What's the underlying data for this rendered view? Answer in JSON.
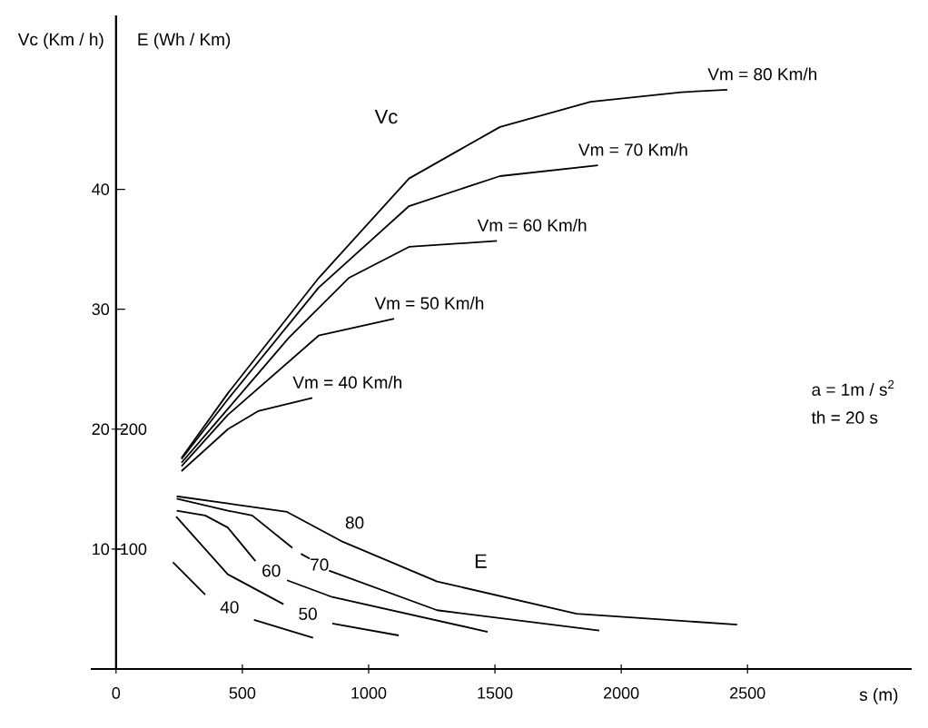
{
  "chart_data": {
    "type": "line",
    "xlabel": "s (m)",
    "ylabel": "Vc (Km / h)",
    "y2label": "E (Wh / Km)",
    "xlim": [
      -100,
      3150
    ],
    "xticks": [
      0,
      500,
      1000,
      1500,
      2000,
      2500
    ],
    "ylim": [
      0,
      54.5
    ],
    "yticks": [
      10,
      20,
      30,
      40
    ],
    "y2lim": [
      0,
      545
    ],
    "y2ticks": [
      100,
      200
    ],
    "series": [
      {
        "name": "Vm = 80 Km/h",
        "color": "#000000",
        "x": [
          259,
          443,
          802,
          1160,
          1520,
          1879,
          2238,
          2420
        ],
        "values": [
          17.6,
          23.0,
          32.6,
          40.9,
          45.2,
          47.3,
          48.1,
          48.3
        ]
      },
      {
        "name": "Vm = 70 Km/h",
        "color": "#000000",
        "x": [
          259,
          443,
          802,
          1160,
          1520,
          1908
        ],
        "values": [
          17.5,
          22.5,
          31.8,
          38.6,
          41.1,
          42.0
        ]
      },
      {
        "name": "Vm = 60 Km/h",
        "color": "#000000",
        "x": [
          259,
          443,
          683,
          921,
          1160,
          1508
        ],
        "values": [
          17.2,
          21.7,
          27.6,
          32.6,
          35.2,
          35.7
        ]
      },
      {
        "name": "Vm = 50 Km/h",
        "color": "#000000",
        "x": [
          259,
          443,
          802,
          1101
        ],
        "values": [
          16.9,
          21.2,
          27.8,
          29.2
        ]
      },
      {
        "name": "Vm = 40 Km/h",
        "color": "#000000",
        "x": [
          259,
          443,
          562,
          777
        ],
        "values": [
          16.5,
          20.0,
          21.5,
          22.6
        ]
      },
      {
        "name": "80",
        "axis": "y2",
        "color": "#000000",
        "x": [
          240,
          443,
          677,
          898,
          1271,
          1823,
          2459
        ],
        "values": [
          144,
          138,
          131,
          106,
          73,
          46,
          37
        ]
      },
      {
        "name": "70",
        "axis": "y2",
        "color": "#000000",
        "x": [
          240,
          443,
          539,
          698,
          715,
          732,
          767,
          805,
          843,
          1271,
          1913
        ],
        "values": [
          142,
          132,
          128,
          101,
          null,
          96,
          92,
          null,
          82,
          49,
          32
        ]
      },
      {
        "name": "60",
        "axis": "y2",
        "color": "#000000",
        "x": [
          240,
          353,
          442,
          552,
          614,
          677,
          856,
          1471
        ],
        "values": [
          132,
          128,
          118,
          90,
          null,
          74,
          60,
          31
        ]
      },
      {
        "name": "50",
        "axis": "y2",
        "color": "#000000",
        "x": [
          238,
          442,
          663,
          760,
          856,
          1119
        ],
        "values": [
          127,
          79,
          54,
          null,
          38,
          28
        ]
      },
      {
        "name": "40",
        "axis": "y2",
        "color": "#000000",
        "x": [
          225,
          353,
          450,
          546,
          780
        ],
        "values": [
          89,
          62,
          null,
          41,
          26
        ]
      }
    ],
    "annotations": [
      "Vc",
      "E",
      "a = 1m / s$^{2}$",
      "th = 20 s"
    ]
  }
}
